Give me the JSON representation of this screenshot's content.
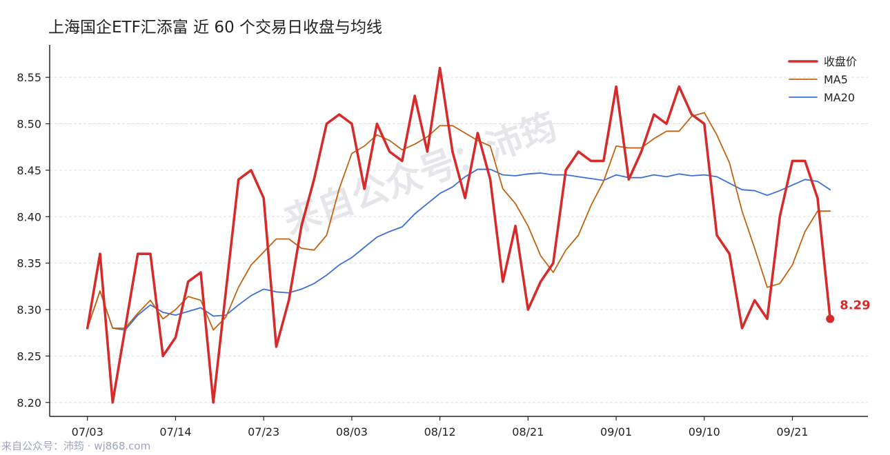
{
  "title": "上海国企ETF汇添富 近 60 个交易日收盘与均线",
  "footer": "来自公众号：沛筠 · wj868.com",
  "watermark": "来自公众号：沛筠",
  "colors": {
    "close": "#d62b2b",
    "ma5": "#c0620f",
    "ma20": "#3a6fd8",
    "grid": "#dddddd",
    "axis": "#222222"
  },
  "chart_data": {
    "type": "line",
    "title": "上海国企ETF汇添富 近 60 个交易日收盘与均线",
    "x_tick_labels": [
      "07/03",
      "07/14",
      "07/23",
      "08/03",
      "08/12",
      "08/21",
      "09/01",
      "09/10",
      "09/21"
    ],
    "x_tick_index": [
      0,
      7,
      14,
      21,
      28,
      35,
      42,
      49,
      56
    ],
    "y_ticks": [
      8.2,
      8.25,
      8.3,
      8.35,
      8.4,
      8.45,
      8.5,
      8.55
    ],
    "y_tick_labels": [
      "8.20",
      "8.25",
      "8.30",
      "8.35",
      "8.40",
      "8.45",
      "8.50",
      "8.55"
    ],
    "ylim": [
      8.185,
      8.585
    ],
    "xlim": [
      -3,
      62
    ],
    "grid": true,
    "legend_position": "top-right",
    "last_value_label": "8.29",
    "series": [
      {
        "name": "收盘价",
        "values": [
          8.28,
          8.36,
          8.2,
          8.28,
          8.36,
          8.36,
          8.25,
          8.27,
          8.33,
          8.34,
          8.2,
          8.32,
          8.44,
          8.45,
          8.42,
          8.26,
          8.31,
          8.39,
          8.44,
          8.5,
          8.51,
          8.5,
          8.43,
          8.5,
          8.47,
          8.46,
          8.53,
          8.47,
          8.56,
          8.47,
          8.42,
          8.49,
          8.44,
          8.33,
          8.39,
          8.3,
          8.33,
          8.35,
          8.45,
          8.47,
          8.46,
          8.46,
          8.54,
          8.44,
          8.47,
          8.51,
          8.5,
          8.54,
          8.51,
          8.5,
          8.38,
          8.36,
          8.28,
          8.31,
          8.29,
          8.4,
          8.46,
          8.46,
          8.42,
          8.29
        ]
      },
      {
        "name": "MA5",
        "values": [
          8.28,
          8.32,
          8.28,
          8.28,
          8.296,
          8.31,
          8.29,
          8.3,
          8.314,
          8.31,
          8.278,
          8.292,
          8.324,
          8.348,
          8.362,
          8.376,
          8.376,
          8.366,
          8.364,
          8.38,
          8.43,
          8.468,
          8.476,
          8.488,
          8.482,
          8.472,
          8.478,
          8.486,
          8.498,
          8.498,
          8.49,
          8.482,
          8.476,
          8.43,
          8.414,
          8.39,
          8.358,
          8.34,
          8.364,
          8.38,
          8.412,
          8.438,
          8.476,
          8.474,
          8.474,
          8.484,
          8.492,
          8.492,
          8.508,
          8.512,
          8.488,
          8.458,
          8.406,
          8.366,
          8.324,
          8.328,
          8.348,
          8.384,
          8.406,
          8.406
        ]
      },
      {
        "name": "MA20",
        "values": [
          8.28,
          8.32,
          8.28,
          8.278,
          8.294,
          8.305,
          8.297,
          8.294,
          8.298,
          8.302,
          8.293,
          8.294,
          8.305,
          8.315,
          8.322,
          8.319,
          8.318,
          8.322,
          8.328,
          8.337,
          8.348,
          8.356,
          8.367,
          8.378,
          8.384,
          8.389,
          8.403,
          8.414,
          8.425,
          8.432,
          8.443,
          8.451,
          8.451,
          8.445,
          8.444,
          8.446,
          8.447,
          8.445,
          8.445,
          8.443,
          8.441,
          8.439,
          8.445,
          8.442,
          8.442,
          8.445,
          8.443,
          8.446,
          8.444,
          8.445,
          8.443,
          8.436,
          8.429,
          8.428,
          8.423,
          8.428,
          8.434,
          8.44,
          8.438,
          8.429
        ]
      }
    ]
  }
}
